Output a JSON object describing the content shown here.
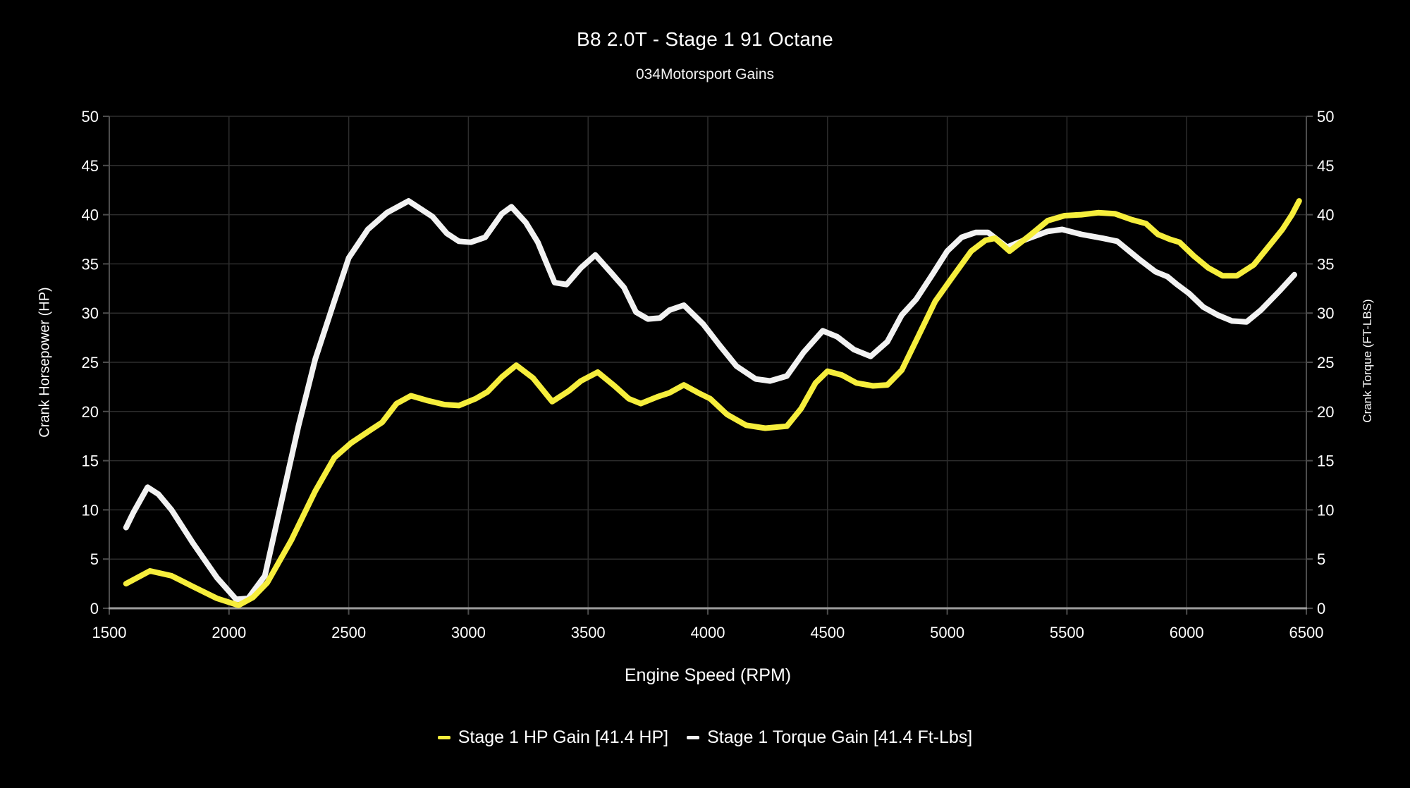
{
  "header": {
    "title": "B8 2.0T - Stage 1 91 Octane",
    "subtitle": "034Motorsport Gains"
  },
  "chart_data": {
    "type": "line",
    "title": "B8 2.0T - Stage 1 91 Octane",
    "subtitle": "034Motorsport Gains",
    "xlabel": "Engine Speed (RPM)",
    "ylabel_left": "Crank Horsepower (HP)",
    "ylabel_right": "Crank Torque (FT-LBS)",
    "xlim": [
      1500,
      6500
    ],
    "ylim": [
      0,
      50
    ],
    "x_ticks": [
      1500,
      2000,
      2500,
      3000,
      3500,
      4000,
      4500,
      5000,
      5500,
      6000,
      6500
    ],
    "y_ticks": [
      0,
      5,
      10,
      15,
      20,
      25,
      30,
      35,
      40,
      45,
      50
    ],
    "grid": true,
    "legend_position": "bottom-center",
    "style": {
      "background": "#000000",
      "grid_color": "#2d2d2d",
      "axis_side_color": "#4d4d4d",
      "axis_bottom_color": "#9c9c9c",
      "tick_label_color": "#ffffff",
      "hp_line_color": "#f6ee3c",
      "torque_line_color": "#f2f2f2",
      "line_width": 8
    },
    "series": [
      {
        "name": "Stage 1 Torque Gain [41.4 Ft-Lbs]",
        "short_name": "torque-gain",
        "color": "#f2f2f2",
        "max_gain": 41.4,
        "points": [
          [
            1570,
            8.2
          ],
          [
            1600,
            9.7
          ],
          [
            1660,
            12.3
          ],
          [
            1705,
            11.6
          ],
          [
            1760,
            10.0
          ],
          [
            1850,
            6.6
          ],
          [
            1950,
            3.1
          ],
          [
            2030,
            0.9
          ],
          [
            2080,
            1.0
          ],
          [
            2150,
            3.3
          ],
          [
            2230,
            12.0
          ],
          [
            2290,
            18.5
          ],
          [
            2360,
            25.3
          ],
          [
            2440,
            31.2
          ],
          [
            2500,
            35.6
          ],
          [
            2580,
            38.5
          ],
          [
            2660,
            40.2
          ],
          [
            2750,
            41.4
          ],
          [
            2850,
            39.8
          ],
          [
            2910,
            38.1
          ],
          [
            2960,
            37.3
          ],
          [
            3010,
            37.2
          ],
          [
            3070,
            37.7
          ],
          [
            3140,
            40.1
          ],
          [
            3180,
            40.8
          ],
          [
            3240,
            39.2
          ],
          [
            3290,
            37.2
          ],
          [
            3360,
            33.1
          ],
          [
            3410,
            32.9
          ],
          [
            3470,
            34.6
          ],
          [
            3530,
            35.9
          ],
          [
            3600,
            34.0
          ],
          [
            3650,
            32.6
          ],
          [
            3700,
            30.1
          ],
          [
            3750,
            29.4
          ],
          [
            3800,
            29.5
          ],
          [
            3840,
            30.3
          ],
          [
            3900,
            30.8
          ],
          [
            3980,
            28.9
          ],
          [
            4050,
            26.7
          ],
          [
            4120,
            24.6
          ],
          [
            4200,
            23.3
          ],
          [
            4260,
            23.1
          ],
          [
            4330,
            23.6
          ],
          [
            4400,
            26.0
          ],
          [
            4480,
            28.2
          ],
          [
            4540,
            27.6
          ],
          [
            4610,
            26.3
          ],
          [
            4680,
            25.6
          ],
          [
            4750,
            27.1
          ],
          [
            4810,
            29.8
          ],
          [
            4870,
            31.4
          ],
          [
            4940,
            34.0
          ],
          [
            5000,
            36.3
          ],
          [
            5060,
            37.7
          ],
          [
            5120,
            38.2
          ],
          [
            5170,
            38.2
          ],
          [
            5250,
            36.7
          ],
          [
            5330,
            37.5
          ],
          [
            5420,
            38.3
          ],
          [
            5480,
            38.5
          ],
          [
            5560,
            38.0
          ],
          [
            5650,
            37.6
          ],
          [
            5710,
            37.3
          ],
          [
            5800,
            35.5
          ],
          [
            5870,
            34.2
          ],
          [
            5920,
            33.7
          ],
          [
            5960,
            32.9
          ],
          [
            6010,
            32.0
          ],
          [
            6070,
            30.6
          ],
          [
            6130,
            29.8
          ],
          [
            6190,
            29.2
          ],
          [
            6250,
            29.1
          ],
          [
            6310,
            30.3
          ],
          [
            6390,
            32.3
          ],
          [
            6450,
            33.9
          ]
        ]
      },
      {
        "name": "Stage 1 HP Gain [41.4 HP]",
        "short_name": "hp-gain",
        "color": "#f6ee3c",
        "max_gain": 41.4,
        "points": [
          [
            1570,
            2.5
          ],
          [
            1670,
            3.8
          ],
          [
            1760,
            3.3
          ],
          [
            1850,
            2.2
          ],
          [
            1950,
            1.0
          ],
          [
            2040,
            0.3
          ],
          [
            2100,
            1.1
          ],
          [
            2160,
            2.6
          ],
          [
            2260,
            6.9
          ],
          [
            2360,
            11.9
          ],
          [
            2440,
            15.3
          ],
          [
            2510,
            16.8
          ],
          [
            2590,
            18.1
          ],
          [
            2640,
            18.9
          ],
          [
            2700,
            20.8
          ],
          [
            2760,
            21.6
          ],
          [
            2830,
            21.1
          ],
          [
            2900,
            20.7
          ],
          [
            2960,
            20.6
          ],
          [
            3030,
            21.3
          ],
          [
            3080,
            22.0
          ],
          [
            3140,
            23.5
          ],
          [
            3200,
            24.7
          ],
          [
            3270,
            23.4
          ],
          [
            3350,
            21.0
          ],
          [
            3420,
            22.1
          ],
          [
            3470,
            23.1
          ],
          [
            3540,
            24.0
          ],
          [
            3610,
            22.6
          ],
          [
            3670,
            21.3
          ],
          [
            3720,
            20.8
          ],
          [
            3790,
            21.5
          ],
          [
            3840,
            21.9
          ],
          [
            3900,
            22.7
          ],
          [
            3960,
            21.9
          ],
          [
            4010,
            21.3
          ],
          [
            4080,
            19.7
          ],
          [
            4160,
            18.6
          ],
          [
            4240,
            18.3
          ],
          [
            4330,
            18.5
          ],
          [
            4390,
            20.3
          ],
          [
            4450,
            22.9
          ],
          [
            4500,
            24.1
          ],
          [
            4560,
            23.7
          ],
          [
            4620,
            22.9
          ],
          [
            4690,
            22.6
          ],
          [
            4750,
            22.7
          ],
          [
            4810,
            24.2
          ],
          [
            4870,
            27.2
          ],
          [
            4950,
            31.2
          ],
          [
            5020,
            33.6
          ],
          [
            5100,
            36.3
          ],
          [
            5160,
            37.4
          ],
          [
            5200,
            37.6
          ],
          [
            5260,
            36.3
          ],
          [
            5340,
            37.8
          ],
          [
            5420,
            39.4
          ],
          [
            5490,
            39.9
          ],
          [
            5560,
            40.0
          ],
          [
            5630,
            40.2
          ],
          [
            5700,
            40.1
          ],
          [
            5770,
            39.5
          ],
          [
            5830,
            39.1
          ],
          [
            5880,
            38.0
          ],
          [
            5930,
            37.5
          ],
          [
            5970,
            37.2
          ],
          [
            6030,
            35.8
          ],
          [
            6090,
            34.6
          ],
          [
            6150,
            33.8
          ],
          [
            6210,
            33.8
          ],
          [
            6280,
            34.9
          ],
          [
            6360,
            37.3
          ],
          [
            6400,
            38.5
          ],
          [
            6440,
            40.0
          ],
          [
            6470,
            41.4
          ]
        ]
      }
    ],
    "legend": [
      {
        "label": "Stage 1 HP Gain [41.4 HP]",
        "color": "#f6ee3c"
      },
      {
        "label": "Stage 1 Torque Gain [41.4 Ft-Lbs]",
        "color": "#f2f2f2"
      }
    ]
  }
}
